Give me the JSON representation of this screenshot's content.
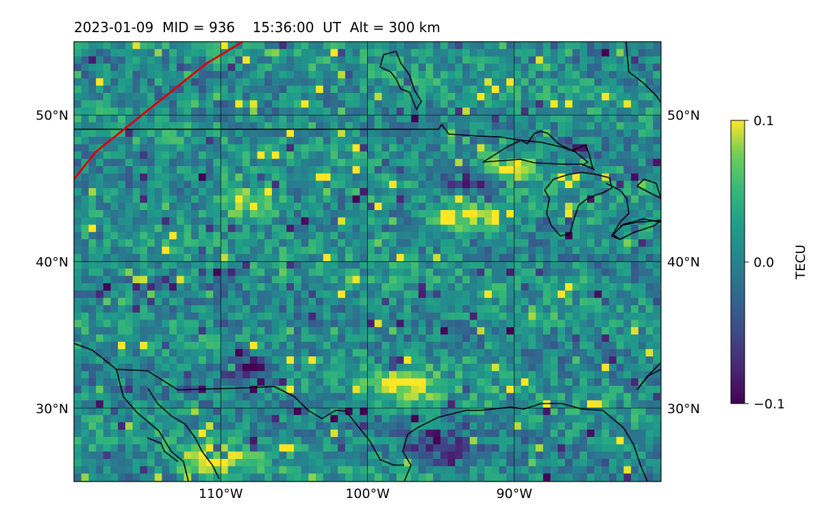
{
  "title": {
    "date": "2023-01-09",
    "mid": "MID = 936",
    "time": "15:36:00  UT",
    "alt": "Alt = 300 km"
  },
  "map": {
    "lon_range": [
      -120,
      -80
    ],
    "lat_range": [
      25,
      55
    ],
    "lat_ticks": [
      {
        "value": 50,
        "label": "50°N"
      },
      {
        "value": 40,
        "label": "40°N"
      },
      {
        "value": 30,
        "label": "30°N"
      }
    ],
    "lon_ticks": [
      {
        "value": -110,
        "label": "110°W"
      },
      {
        "value": -100,
        "label": "100°W"
      },
      {
        "value": -90,
        "label": "90°W"
      }
    ],
    "track_color": "#dd0000",
    "track": [
      [
        -120.5,
        45.0
      ],
      [
        -118.5,
        47.5
      ],
      [
        -116.0,
        49.5
      ],
      [
        -113.5,
        51.5
      ],
      [
        -111.0,
        53.5
      ],
      [
        -108.5,
        55.0
      ]
    ],
    "hotspots": [
      {
        "lon": -93.5,
        "lat": 43.0,
        "sign": 1
      },
      {
        "lon": -97.5,
        "lat": 31.5,
        "sign": 1
      },
      {
        "lon": -93.0,
        "lat": 45.5,
        "sign": -1
      },
      {
        "lon": -108.0,
        "lat": 32.8,
        "sign": -1
      },
      {
        "lon": -95.0,
        "lat": 27.2,
        "sign": -1
      },
      {
        "lon": -108.3,
        "lat": 44.0,
        "sign": 1
      },
      {
        "lon": -90.5,
        "lat": 46.5,
        "sign": 1
      },
      {
        "lon": -110.5,
        "lat": 26.5,
        "sign": 1
      }
    ]
  },
  "colorbar": {
    "label": "TECU",
    "min": -0.1,
    "max": 0.1,
    "ticks": [
      {
        "value": 0.1,
        "label": "0.1"
      },
      {
        "value": 0.0,
        "label": "0.0"
      },
      {
        "value": -0.1,
        "label": "−0.1"
      }
    ],
    "colormap": "viridis"
  }
}
